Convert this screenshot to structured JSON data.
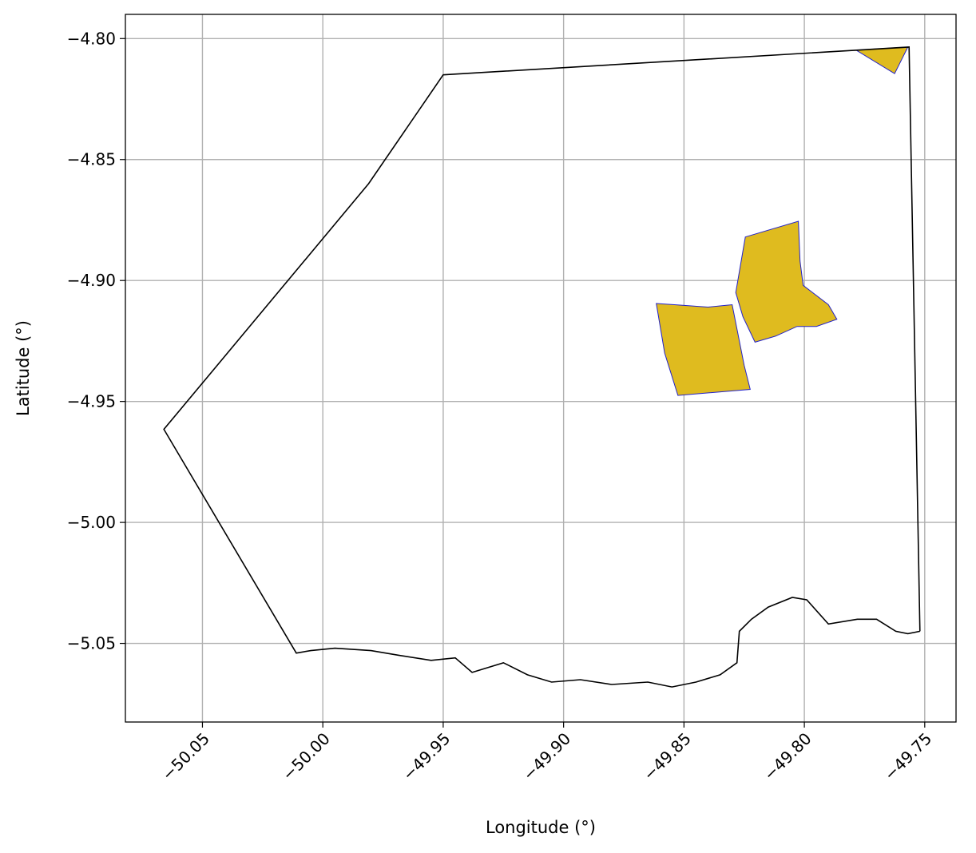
{
  "chart_data": {
    "type": "map",
    "xlabel": "Longitude (°)",
    "ylabel": "Latitude (°)",
    "xlim": [
      -50.082,
      -49.737
    ],
    "ylim": [
      -5.0825,
      -4.79
    ],
    "xticks": [
      -50.05,
      -50.0,
      -49.95,
      -49.9,
      -49.85,
      -49.8,
      -49.75
    ],
    "xtick_labels": [
      "−50.05",
      "−50.00",
      "−49.95",
      "−49.90",
      "−49.85",
      "−49.80",
      "−49.75"
    ],
    "yticks": [
      -4.8,
      -4.85,
      -4.9,
      -4.95,
      -5.0,
      -5.05
    ],
    "ytick_labels": [
      "−4.80",
      "−4.85",
      "−4.90",
      "−4.95",
      "−5.00",
      "−5.05"
    ],
    "grid": true,
    "colors": {
      "boundary": "#000000",
      "fill": "#dfbb1f",
      "fill_edge": "#2222cc",
      "grid": "#b0b0b0"
    },
    "boundary": [
      [
        -49.752,
        -5.045
      ],
      [
        -49.7565,
        -4.8035
      ],
      [
        -49.95,
        -4.815
      ],
      [
        -49.981,
        -4.86
      ],
      [
        -50.066,
        -4.9615
      ],
      [
        -50.011,
        -5.054
      ],
      [
        -50.005,
        -5.053
      ],
      [
        -49.995,
        -5.052
      ],
      [
        -49.98,
        -5.053
      ],
      [
        -49.968,
        -5.055
      ],
      [
        -49.955,
        -5.057
      ],
      [
        -49.945,
        -5.056
      ],
      [
        -49.938,
        -5.062
      ],
      [
        -49.925,
        -5.058
      ],
      [
        -49.915,
        -5.063
      ],
      [
        -49.905,
        -5.066
      ],
      [
        -49.893,
        -5.065
      ],
      [
        -49.88,
        -5.067
      ],
      [
        -49.865,
        -5.066
      ],
      [
        -49.855,
        -5.068
      ],
      [
        -49.845,
        -5.066
      ],
      [
        -49.835,
        -5.063
      ],
      [
        -49.828,
        -5.058
      ],
      [
        -49.827,
        -5.045
      ],
      [
        -49.822,
        -5.04
      ],
      [
        -49.815,
        -5.035
      ],
      [
        -49.805,
        -5.031
      ],
      [
        -49.799,
        -5.032
      ],
      [
        -49.79,
        -5.042
      ],
      [
        -49.778,
        -5.04
      ],
      [
        -49.77,
        -5.04
      ],
      [
        -49.762,
        -5.045
      ],
      [
        -49.757,
        -5.046
      ],
      [
        -49.752,
        -5.045
      ]
    ],
    "fill_polygons": [
      [
        [
          -49.7785,
          -4.8048
        ],
        [
          -49.757,
          -4.8035
        ],
        [
          -49.7625,
          -4.8145
        ],
        [
          -49.7785,
          -4.8048
        ]
      ],
      [
        [
          -49.8615,
          -4.9095
        ],
        [
          -49.854,
          -4.91
        ],
        [
          -49.84,
          -4.911
        ],
        [
          -49.83,
          -4.91
        ],
        [
          -49.828,
          -4.92
        ],
        [
          -49.825,
          -4.935
        ],
        [
          -49.8225,
          -4.945
        ],
        [
          -49.8525,
          -4.9475
        ],
        [
          -49.858,
          -4.93
        ],
        [
          -49.8615,
          -4.9095
        ]
      ],
      [
        [
          -49.8245,
          -4.882
        ],
        [
          -49.8025,
          -4.8755
        ],
        [
          -49.8018,
          -4.892
        ],
        [
          -49.8005,
          -4.902
        ],
        [
          -49.79,
          -4.91
        ],
        [
          -49.7865,
          -4.916
        ],
        [
          -49.795,
          -4.919
        ],
        [
          -49.803,
          -4.919
        ],
        [
          -49.812,
          -4.923
        ],
        [
          -49.8205,
          -4.9255
        ],
        [
          -49.8255,
          -4.915
        ],
        [
          -49.8285,
          -4.905
        ],
        [
          -49.8245,
          -4.882
        ]
      ]
    ]
  }
}
